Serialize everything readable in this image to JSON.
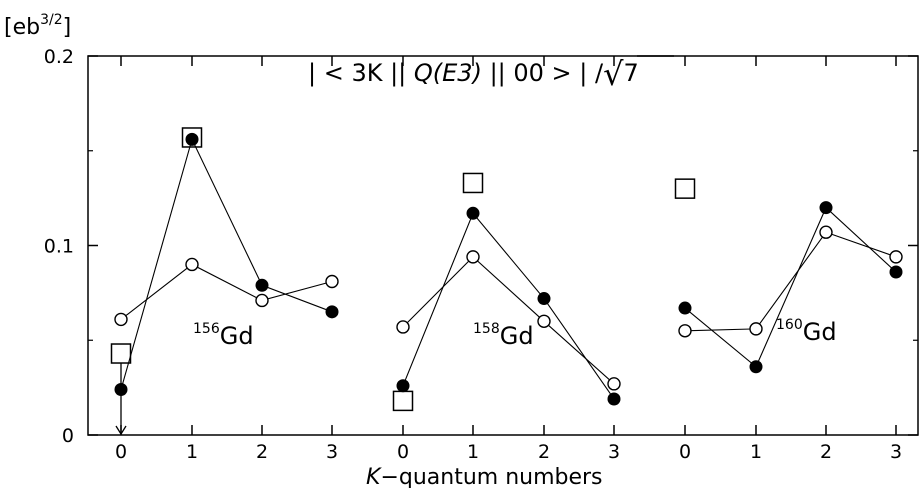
{
  "chart_data": {
    "type": "line",
    "title": "| < 3K || Q(E3) || 00 > | /√7",
    "ylabel": "[eb3/2]",
    "xlabel": "K−quantum numbers",
    "ylim": [
      0,
      0.2
    ],
    "yticks": [
      "0",
      "0.1",
      "0.2"
    ],
    "grid": false,
    "groups": [
      {
        "nucleus": "Gd",
        "mass_number": "156",
        "k": [
          "0",
          "1",
          "2",
          "3"
        ],
        "series": [
          {
            "marker": "filled-circle",
            "values": [
              0.024,
              0.156,
              0.079,
              0.065
            ]
          },
          {
            "marker": "open-circle",
            "values": [
              0.061,
              0.09,
              0.071,
              0.081
            ]
          },
          {
            "marker": "open-square",
            "values": [
              0.043,
              0.157,
              null,
              null
            ]
          }
        ]
      },
      {
        "nucleus": "Gd",
        "mass_number": "158",
        "k": [
          "0",
          "1",
          "2",
          "3"
        ],
        "series": [
          {
            "marker": "filled-circle",
            "values": [
              0.026,
              0.117,
              0.072,
              0.019
            ]
          },
          {
            "marker": "open-circle",
            "values": [
              0.057,
              0.094,
              0.06,
              0.027
            ]
          },
          {
            "marker": "open-square",
            "values": [
              0.018,
              0.133,
              null,
              null
            ]
          }
        ]
      },
      {
        "nucleus": "Gd",
        "mass_number": "160",
        "k": [
          "0",
          "1",
          "2",
          "3"
        ],
        "series": [
          {
            "marker": "filled-circle",
            "values": [
              0.067,
              0.036,
              0.12,
              0.086
            ]
          },
          {
            "marker": "open-circle",
            "values": [
              0.055,
              0.056,
              0.107,
              0.094
            ]
          },
          {
            "marker": "open-square",
            "values": [
              0.13,
              null,
              null,
              null
            ]
          }
        ]
      }
    ]
  },
  "ui": {
    "ylabel_base": "[eb",
    "ylabel_sup": "3/2",
    "ylabel_end": "]",
    "title_pre": "| < 3K || ",
    "title_op": "Q(E3)",
    "title_post": " || 00 > | /",
    "title_root": "√",
    "title_radicand": "7",
    "xlabel_k": "K",
    "xlabel_rest": "−quantum numbers"
  }
}
